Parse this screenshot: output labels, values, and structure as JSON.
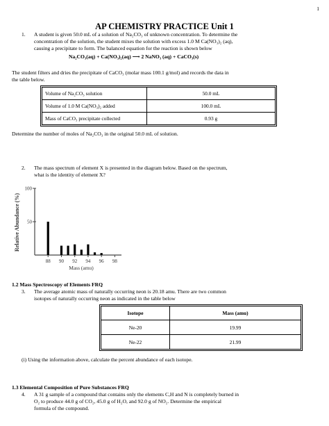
{
  "page_number": "1",
  "title": "AP CHEMISTRY PRACTICE Unit 1",
  "q1": {
    "num": "1.",
    "line1": "A student is given 50.0 mL of a solution of Na₂CO₃ of unknown concentration.  To determine the",
    "line2": "concentration of the solution, the student mixes the solution with excess 1.0 M Ca(NO₃)₂ (aq),",
    "line3": "causing a precipitate to form.  The balanced equation for the reaction is shown below",
    "equation": "Na₂CO₃(aq)  +  Ca(NO₃)₂(aq)  ⟶ 2 NaNO₃ (aq) + CaCO₃(s)",
    "intro1": "The student filters and dries the precipitate of CaCO₃ (molar mass 100.1 g/mol) and records the data in",
    "intro2": "the table below.",
    "table": [
      {
        "label": "Volume of Na₂CO₃ solution",
        "value": "50.0 mL"
      },
      {
        "label": "Volume of 1.0 M Ca(NO₃)₂ added",
        "value": "100.0 mL"
      },
      {
        "label": "Mass of CaCO₃ precipitate collected",
        "value": "0.93 g"
      }
    ],
    "question": "Determine the number of moles of Na₂CO₃ in the original 50.0 mL of solution."
  },
  "q2": {
    "num": "2.",
    "line1": "The mass spectrum of element X is presented in the diagram below.  Based on the spectrum,",
    "line2": "what is the identity of element X?"
  },
  "chart_data": {
    "type": "bar",
    "title": "",
    "xlabel": "Mass (amu)",
    "ylabel": "Relative Abundance (%)",
    "x": [
      88,
      90,
      91,
      92,
      93,
      94,
      95,
      96
    ],
    "values": [
      50,
      14,
      14,
      16,
      8,
      16,
      4,
      3
    ],
    "ylim": [
      0,
      100
    ],
    "xlim": [
      86,
      99
    ],
    "xticks": [
      "88",
      "90",
      "92",
      "94",
      "96",
      "98"
    ],
    "yticks": [
      "100",
      "50"
    ]
  },
  "sec1": {
    "heading": "1.2 Mass Spectroscopy of Elements FRQ",
    "num": "3.",
    "line1": "The average atomic mass of naturally occurring neon is 20.18 amu.  There are two common",
    "line2": "isotopes of naturally occurring neon as indicated in the table below",
    "headers": [
      "Isotope",
      "Mass (amu)"
    ],
    "rows": [
      [
        "Ne-20",
        "19.99"
      ],
      [
        "Ne-22",
        "21.99"
      ]
    ],
    "question": "(i) Using the information above, calculate the percent abundance of each isotope."
  },
  "sec2": {
    "heading": "1.3 Elemental Composition of Pure Substances FRQ",
    "num": "4.",
    "line1": "A 31 g sample of a compound that contains only the elements C,H and N is completely burned in",
    "line2": "O₂ to produce 44.0 g of CO₂, 45.0 g of H₂O, and 92.0 g of NO₂.  Determine the empirical",
    "line3": "formula of the compound."
  }
}
